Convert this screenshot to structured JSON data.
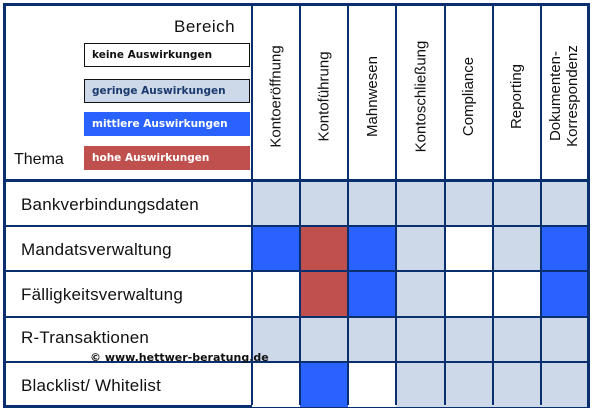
{
  "header": {
    "bereich_label": "Bereich",
    "thema_label": "Thema"
  },
  "legend": [
    {
      "label": "keine Auswirkungen",
      "color": "#ffffff",
      "text_color": "#111111"
    },
    {
      "label": "geringe Auswirkungen",
      "color": "#cdd9e8",
      "text_color": "#1a3a6e"
    },
    {
      "label": "mittlere Auswirkungen",
      "color": "#2962ff",
      "text_color": "#ffffff"
    },
    {
      "label": "hohe Auswirkungen",
      "color": "#c0504d",
      "text_color": "#ffffff"
    }
  ],
  "columns": [
    {
      "label": "Kontoeröffnung"
    },
    {
      "label": "Kontoführung"
    },
    {
      "label": "Mahnwesen"
    },
    {
      "label": "Kontoschließung"
    },
    {
      "label": "Compliance"
    },
    {
      "label": "Reporting"
    },
    {
      "label": "Dokumenten-\nKorrespondenz"
    }
  ],
  "rows": [
    {
      "label": "Bankverbindungsdaten",
      "levels": [
        "geringe",
        "geringe",
        "geringe",
        "geringe",
        "geringe",
        "geringe",
        "geringe"
      ]
    },
    {
      "label": "Mandatsverwaltung",
      "levels": [
        "mittlere",
        "hohe",
        "mittlere",
        "geringe",
        "keine",
        "geringe",
        "mittlere"
      ]
    },
    {
      "label": "Fälligkeitsverwaltung",
      "levels": [
        "keine",
        "hohe",
        "mittlere",
        "geringe",
        "keine",
        "keine",
        "mittlere"
      ]
    },
    {
      "label": "R-Transaktionen",
      "levels": [
        "geringe",
        "geringe",
        "geringe",
        "geringe",
        "geringe",
        "geringe",
        "geringe"
      ]
    },
    {
      "label": "Blacklist/ Whitelist",
      "levels": [
        "keine",
        "mittlere",
        "keine",
        "geringe",
        "geringe",
        "geringe",
        "geringe"
      ]
    }
  ],
  "level_colors": {
    "keine": "#ffffff",
    "geringe": "#cdd9e8",
    "mittlere": "#2962ff",
    "hohe": "#c0504d"
  },
  "copyright": "© www.hettwer-beratung.de",
  "border_color": "#0a2f6e"
}
